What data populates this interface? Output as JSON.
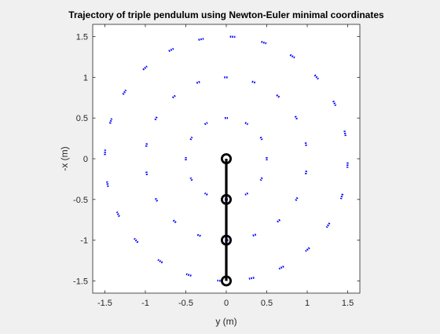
{
  "chart_data": {
    "type": "scatter",
    "title": "Trajectory of triple pendulum using Newton-Euler minimal coordinates",
    "xlabel": "y (m)",
    "ylabel": "-x (m)",
    "xlim": [
      -1.65,
      1.65
    ],
    "ylim": [
      -1.65,
      1.65
    ],
    "xticks": [
      -1.5,
      -1,
      -0.5,
      0,
      0.5,
      1,
      1.5
    ],
    "yticks": [
      -1.5,
      -1,
      -0.5,
      0,
      0.5,
      1,
      1.5
    ],
    "xtick_labels": [
      "-1.5",
      "-1",
      "-0.5",
      "0",
      "0.5",
      "1",
      "1.5"
    ],
    "ytick_labels": [
      "-1.5",
      "-1",
      "-0.5",
      "0",
      "0.5",
      "1",
      "1.5"
    ],
    "grid": false,
    "colors": {
      "background": "#f0f0f0",
      "axes_background": "#ffffff",
      "trajectory": "#0000ff",
      "pendulum": "#000000",
      "axis": "#262626"
    },
    "trajectory_rings": [
      {
        "radius": 0.5,
        "arc_count": 12,
        "arc_span_deg": 4.5,
        "phase_deg": 0
      },
      {
        "radius": 1.0,
        "arc_count": 18,
        "arc_span_deg": 3.0,
        "phase_deg": 0
      },
      {
        "radius": 1.5,
        "arc_count": 24,
        "arc_span_deg": 2.5,
        "phase_deg": 3
      }
    ],
    "pendulum": {
      "pivot": [
        0,
        0
      ],
      "joints": [
        [
          0,
          -0.5
        ],
        [
          0,
          -1.0
        ],
        [
          0,
          -1.5
        ]
      ]
    }
  }
}
